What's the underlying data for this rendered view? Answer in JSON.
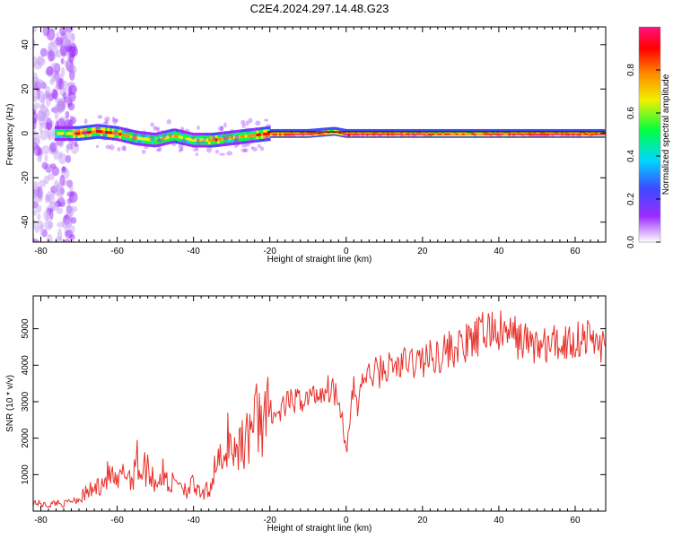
{
  "figure_title": "C2E4.2024.297.14.48.G23",
  "chart_data": [
    {
      "type": "heatmap",
      "title": "C2E4.2024.297.14.48.G23",
      "xlabel": "Height of straight line (km)",
      "ylabel": "Frequency (Hz)",
      "xlim": [
        -82,
        68
      ],
      "ylim": [
        -49,
        48
      ],
      "xticks": [
        -80,
        -60,
        -40,
        -20,
        0,
        20,
        40,
        60
      ],
      "yticks": [
        -40,
        -20,
        0,
        20,
        40
      ],
      "colorbar": {
        "label": "Normalized spectral amplitude",
        "range": [
          0,
          1
        ],
        "ticks": [
          "0.0",
          "0.2",
          "0.4",
          "0.6",
          "0.8"
        ],
        "colors": [
          "#ffffff",
          "#9b2cff",
          "#3c4bff",
          "#00d7ff",
          "#00ff40",
          "#f0f000",
          "#ff8c00",
          "#ff0000",
          "#ff1080"
        ]
      },
      "signal_track": [
        {
          "x": -76,
          "freq": 0,
          "amp": 0.5
        },
        {
          "x": -70,
          "freq": 0,
          "amp": 0.85
        },
        {
          "x": -65,
          "freq": 1,
          "amp": 0.8
        },
        {
          "x": -60,
          "freq": 0,
          "amp": 0.75
        },
        {
          "x": -55,
          "freq": -2,
          "amp": 0.65
        },
        {
          "x": -50,
          "freq": -3,
          "amp": 0.6
        },
        {
          "x": -45,
          "freq": -1,
          "amp": 0.7
        },
        {
          "x": -40,
          "freq": -3,
          "amp": 0.6
        },
        {
          "x": -35,
          "freq": -3,
          "amp": 0.75
        },
        {
          "x": -30,
          "freq": -2,
          "amp": 0.65
        },
        {
          "x": -25,
          "freq": -1,
          "amp": 0.7
        },
        {
          "x": -20,
          "freq": 0,
          "amp": 0.9
        },
        {
          "x": -10,
          "freq": 0,
          "amp": 0.95
        },
        {
          "x": -3,
          "freq": 1,
          "amp": 0.85
        },
        {
          "x": 0,
          "freq": 0,
          "amp": 1.0
        },
        {
          "x": 10,
          "freq": 0,
          "amp": 0.95
        },
        {
          "x": 20,
          "freq": 0,
          "amp": 0.9
        },
        {
          "x": 30,
          "freq": 0,
          "amp": 0.85
        },
        {
          "x": 40,
          "freq": 0,
          "amp": 0.9
        },
        {
          "x": 50,
          "freq": 0,
          "amp": 0.95
        },
        {
          "x": 60,
          "freq": 0,
          "amp": 0.95
        },
        {
          "x": 68,
          "freq": 0,
          "amp": 0.95
        }
      ]
    },
    {
      "type": "line",
      "xlabel": "Height of straight line (km)",
      "ylabel": "SNR (10 * v/v)",
      "xlim": [
        -82,
        68
      ],
      "ylim": [
        0,
        5900
      ],
      "xticks": [
        -80,
        -60,
        -40,
        -20,
        0,
        20,
        40,
        60
      ],
      "yticks": [
        1000,
        2000,
        3000,
        4000,
        5000
      ],
      "color": "#e8302a",
      "series": [
        {
          "x": [
            -82,
            -80,
            -78,
            -76,
            -74,
            -72,
            -70,
            -68,
            -66,
            -64,
            -62,
            -60,
            -58,
            -56,
            -55,
            -54,
            -52,
            -50,
            -48,
            -46,
            -44,
            -42,
            -40,
            -38,
            -36,
            -35,
            -34,
            -32,
            -31,
            -30,
            -29,
            -28,
            -26,
            -25,
            -24,
            -23,
            -22,
            -21,
            -20,
            -18,
            -16,
            -14,
            -12,
            -10,
            -8,
            -6,
            -4,
            -2,
            -1,
            0,
            1,
            2,
            3,
            4,
            6,
            8,
            10,
            14,
            18,
            22,
            26,
            30,
            34,
            36,
            38,
            40,
            44,
            48,
            52,
            56,
            60,
            62,
            64,
            66,
            68
          ],
          "y": [
            250,
            200,
            150,
            250,
            180,
            300,
            350,
            500,
            600,
            800,
            1000,
            700,
            1100,
            900,
            1500,
            1100,
            1200,
            800,
            1000,
            700,
            900,
            600,
            700,
            400,
            600,
            900,
            1500,
            1100,
            2200,
            1800,
            1500,
            2000,
            1900,
            2500,
            2400,
            2700,
            2600,
            2400,
            2800,
            2600,
            2900,
            3000,
            3050,
            3100,
            3200,
            3300,
            3400,
            3200,
            2600,
            1600,
            2400,
            3500,
            2800,
            3600,
            3700,
            3800,
            3900,
            4000,
            4100,
            4200,
            4400,
            4500,
            4700,
            4900,
            5000,
            4900,
            4800,
            4600,
            4500,
            4600,
            4700,
            4800,
            4700,
            4650,
            4500
          ]
        }
      ]
    }
  ]
}
